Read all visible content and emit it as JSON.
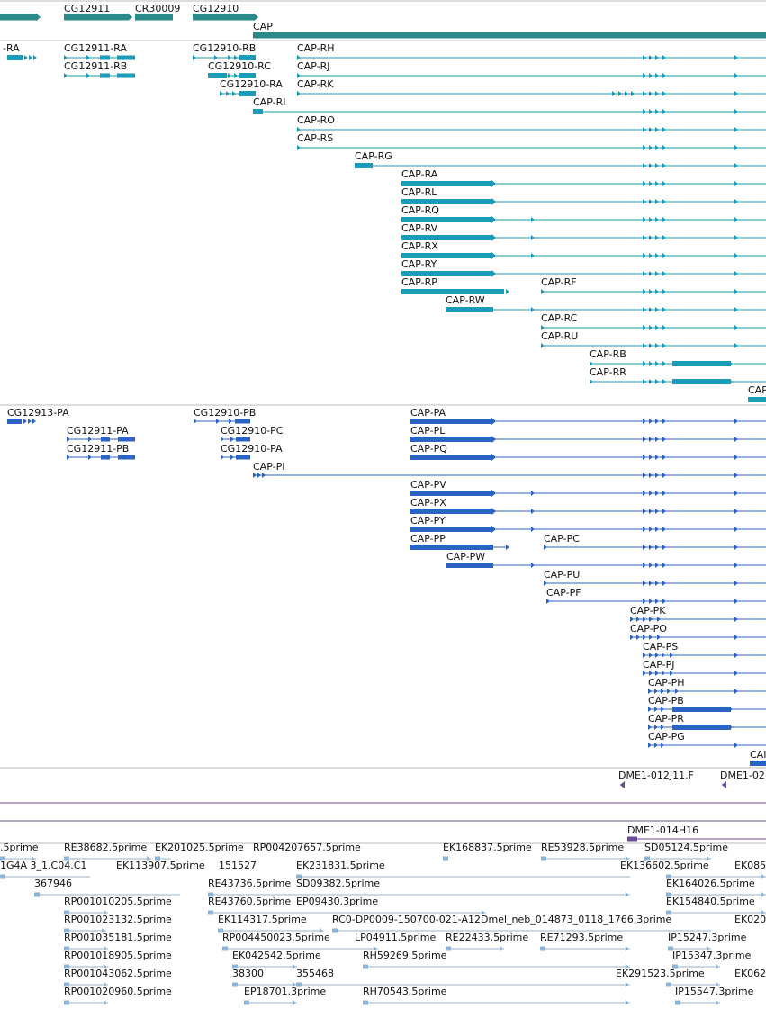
{
  "colors": {
    "gene": "#2a8a8a",
    "rna": "#1a9bb8",
    "protein": "#2b63c4",
    "bac": "#6a4a9a",
    "est": "#8cb4d8",
    "divider": "#bbbbbb"
  },
  "gene_track": {
    "genes": [
      "CG12911",
      "CR30009",
      "CG12910",
      "CAP"
    ]
  },
  "transcript_track": {
    "labels": [
      "-RA",
      "CG12911-RA",
      "CG12911-RB",
      "CG12910-RB",
      "CG12910-RC",
      "CG12910-RA",
      "CAP-RH",
      "CAP-RJ",
      "CAP-RK",
      "CAP-RI",
      "CAP-RO",
      "CAP-RS",
      "CAP-RG",
      "CAP-RA",
      "CAP-RL",
      "CAP-RQ",
      "CAP-RV",
      "CAP-RX",
      "CAP-RY",
      "CAP-RP",
      "CAP-RF",
      "CAP-RW",
      "CAP-RC",
      "CAP-RU",
      "CAP-RB",
      "CAP-RR",
      "CAP"
    ]
  },
  "protein_track": {
    "labels": [
      "CG12913-PA",
      "CG12910-PB",
      "CG12911-PA",
      "CG12910-PC",
      "CG12911-PB",
      "CG12910-PA",
      "CAP-PI",
      "CAP-PA",
      "CAP-PL",
      "CAP-PQ",
      "CAP-PV",
      "CAP-PX",
      "CAP-PY",
      "CAP-PP",
      "CAP-PC",
      "CAP-PW",
      "CAP-PU",
      "CAP-PF",
      "CAP-PK",
      "CAP-PO",
      "CAP-PS",
      "CAP-PJ",
      "CAP-PH",
      "CAP-PB",
      "CAP-PR",
      "CAP-PG",
      "CAI"
    ]
  },
  "bac_track": {
    "labels": [
      "DME1-012J11.F",
      "DME1-02",
      "DME1-014H16"
    ]
  },
  "est_track": {
    "labels": [
      ".5prime",
      "RE38682.5prime",
      "EK201025.5prime",
      "RP004207657.5prime",
      "EK168837.5prime",
      "RE53928.5prime",
      "SD05124.5prime",
      "1G4A 3_1.C04.C1",
      "EK113907.5prime",
      "151527",
      "EK231831.5prime",
      "EK136602.5prime",
      "EK085",
      "367946",
      "RE43736.5prime",
      "SD09382.5prime",
      "EK164026.5prime",
      "RP001010205.5prime",
      "RE43760.5prime",
      "EP09430.3prime",
      "EK154840.5prime",
      "RP001023132.5prime",
      "EK114317.5prime",
      "RC0-DP0009-150700-021-A12Dmel_neb_014873_0118_1766.3prime",
      "EK020",
      "RP001035181.5prime",
      "RP004450023.5prime",
      "LP04911.5prime",
      "RE22433.5prime",
      "RE71293.5prime",
      "IP15247.3prime",
      "RP001018905.5prime",
      "EK042542.5prime",
      "RH59269.5prime",
      "IP15347.3prime",
      "RP001043062.5prime",
      "38300",
      "355468",
      "EK291523.5prime",
      "EK062",
      "RP001020960.5prime",
      "EP18701.3prime",
      "RH70543.5prime",
      "IP15547.3prime"
    ]
  }
}
